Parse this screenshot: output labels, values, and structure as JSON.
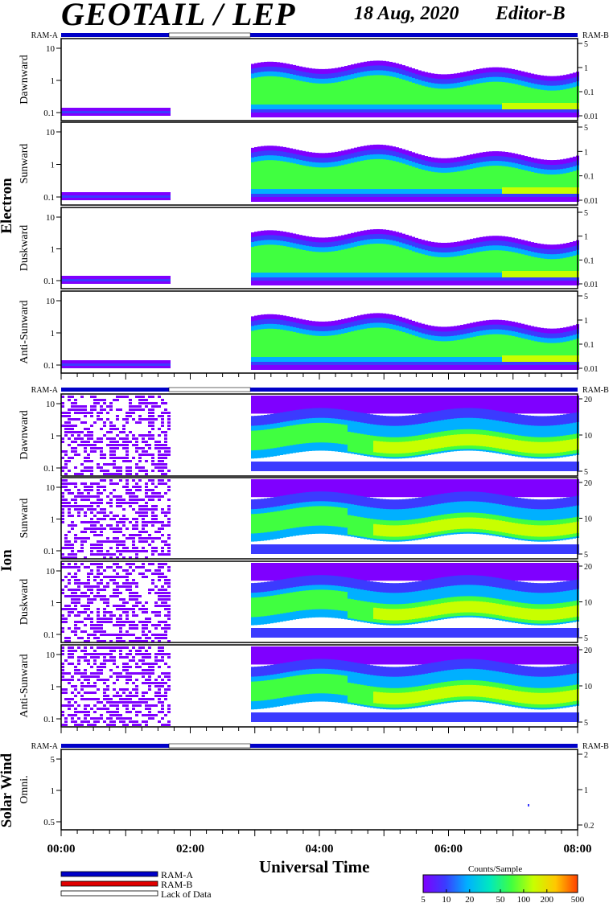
{
  "header": {
    "title": "GEOTAIL / LEP",
    "date": "18 Aug, 2020",
    "editor": "Editor-B"
  },
  "groups": [
    {
      "name": "Electron",
      "ram_left": "RAM-A",
      "ram_right": "RAM-B",
      "panels": [
        {
          "label": "Dawnward",
          "yticks_left": [
            "10",
            "1",
            "0.1"
          ],
          "yticks_right": [
            "5",
            "1",
            "0.1",
            "0.01"
          ]
        },
        {
          "label": "Sunward",
          "yticks_left": [
            "10",
            "1",
            "0.1"
          ],
          "yticks_right": [
            "5",
            "1",
            "0.1",
            "0.01"
          ]
        },
        {
          "label": "Duskward",
          "yticks_left": [
            "10",
            "1",
            "0.1"
          ],
          "yticks_right": [
            "5",
            "1",
            "0.1",
            "0.01"
          ]
        },
        {
          "label": "Anti-Sunward",
          "yticks_left": [
            "10",
            "1",
            "0.1"
          ],
          "yticks_right": [
            "5",
            "1",
            "0.1",
            "0.01"
          ]
        }
      ]
    },
    {
      "name": "Ion",
      "ram_left": "RAM-A",
      "ram_right": "RAM-B",
      "panels": [
        {
          "label": "Dawnward",
          "yticks_left": [
            "10",
            "1",
            "0.1"
          ],
          "yticks_right": [
            "20",
            "10",
            "5"
          ]
        },
        {
          "label": "Sunward",
          "yticks_left": [
            "10",
            "1",
            "0.1"
          ],
          "yticks_right": [
            "20",
            "10",
            "5"
          ]
        },
        {
          "label": "Duskward",
          "yticks_left": [
            "10",
            "1",
            "0.1"
          ],
          "yticks_right": [
            "20",
            "10",
            "5"
          ]
        },
        {
          "label": "Anti-Sunward",
          "yticks_left": [
            "10",
            "1",
            "0.1"
          ],
          "yticks_right": [
            "20",
            "10",
            "5"
          ]
        }
      ]
    },
    {
      "name": "Solar Wind",
      "ram_left": "RAM-A",
      "ram_right": "RAM-B",
      "panels": [
        {
          "label": "Omni.",
          "yticks_left": [
            "5",
            "1",
            "0.5"
          ],
          "yticks_right": [
            "2",
            "1",
            "0.2"
          ]
        }
      ]
    }
  ],
  "chart_data": {
    "type": "heatmap",
    "title": "GEOTAIL / LEP",
    "xlabel": "Universal Time",
    "x_ticks": [
      "00:00",
      "02:00",
      "04:00",
      "06:00",
      "08:00"
    ],
    "x_range_hours": [
      0,
      8
    ],
    "data_gaps_hours": [
      [
        1.67,
        2.93
      ]
    ],
    "colorbar": {
      "title": "Counts/Sample",
      "ticks": [
        "5",
        "10",
        "20",
        "50",
        "100",
        "200",
        "500"
      ],
      "colors": [
        "#7f00ff",
        "#3b3bff",
        "#00b0ff",
        "#00e8c0",
        "#40ff40",
        "#c8ff00",
        "#ffc800",
        "#ff4000"
      ]
    },
    "legend": [
      {
        "label": "RAM-A",
        "color": "#0000c8"
      },
      {
        "label": "RAM-B",
        "color": "#e00000"
      },
      {
        "label": "Lack of Data",
        "color": "#ffffff"
      }
    ]
  }
}
